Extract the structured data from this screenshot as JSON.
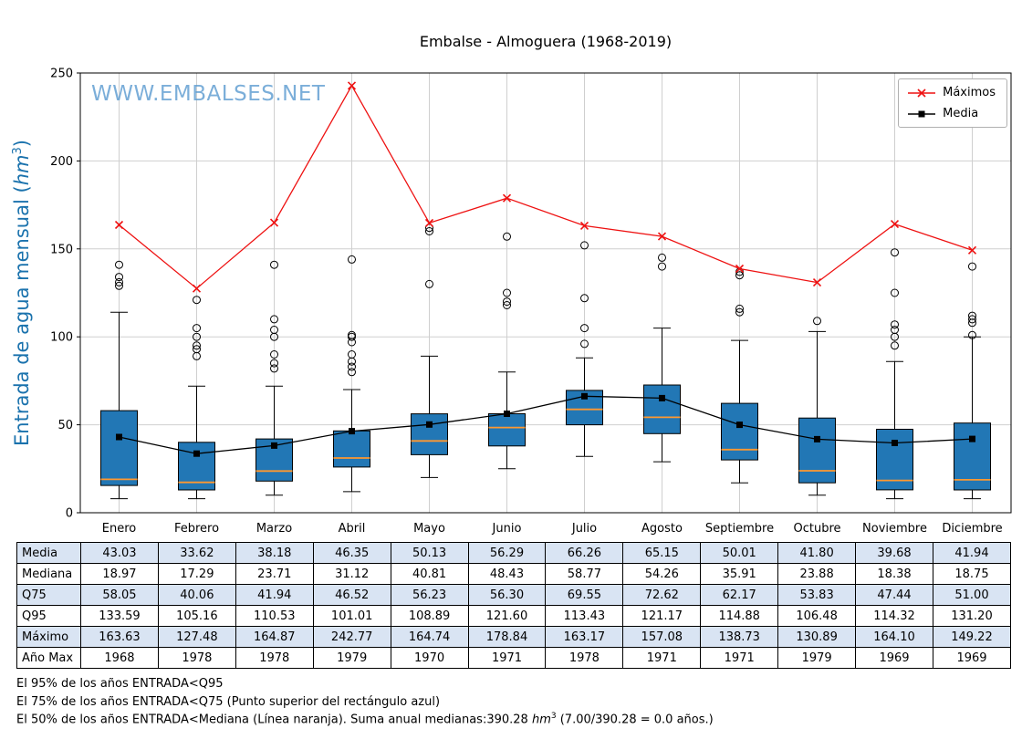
{
  "title": "Embalse - Almoguera (1968-2019)",
  "watermark": "WWW.EMBALSES.NET",
  "colors": {
    "box_fill": "#2277b5",
    "median_orange": "#ff9830",
    "max_red": "#ee1111",
    "axis_blue": "#1a72ad",
    "watermark_blue": "#5b9bd0",
    "table_stripe": "#d9e4f3"
  },
  "legend": {
    "maximos": "Máximos",
    "media": "Media"
  },
  "y_axis": {
    "label_pre": "Entrada de agua mensual (",
    "unit": "hm",
    "sup": "3",
    "label_post": ")",
    "ticks": [
      0,
      50,
      100,
      150,
      200,
      250
    ]
  },
  "chart_data": {
    "type": "boxplot",
    "title": "Embalse - Almoguera (1968-2019)",
    "ylabel": "Entrada de agua mensual (hm3)",
    "ylim": [
      0,
      250
    ],
    "grid": true,
    "legend_position": "top-right",
    "categories": [
      "Enero",
      "Febrero",
      "Marzo",
      "Abril",
      "Mayo",
      "Junio",
      "Julio",
      "Agosto",
      "Septiembre",
      "Octubre",
      "Noviembre",
      "Diciembre"
    ],
    "series": [
      {
        "name": "Máximos",
        "type": "line",
        "marker": "x",
        "values": [
          163.63,
          127.48,
          164.87,
          242.77,
          164.74,
          178.84,
          163.17,
          157.08,
          138.73,
          130.89,
          164.1,
          149.22
        ]
      },
      {
        "name": "Media",
        "type": "line",
        "marker": "square",
        "values": [
          43.03,
          33.62,
          38.18,
          46.35,
          50.13,
          56.29,
          66.26,
          65.15,
          50.01,
          41.8,
          39.68,
          41.94
        ]
      }
    ],
    "boxes": {
      "q25": [
        15.5,
        13,
        18,
        26,
        33,
        38,
        50,
        45,
        30,
        17,
        13,
        13
      ],
      "median": [
        18.97,
        17.29,
        23.71,
        31.12,
        40.81,
        48.43,
        58.77,
        54.26,
        35.91,
        23.88,
        18.38,
        18.75
      ],
      "q75": [
        58.05,
        40.06,
        41.94,
        46.52,
        56.23,
        56.3,
        69.55,
        72.62,
        62.17,
        53.83,
        47.44,
        51.0
      ],
      "whisker_low": [
        8,
        8,
        10,
        12,
        20,
        25,
        32,
        29,
        17,
        10,
        8,
        8
      ],
      "whisker_high": [
        114,
        72,
        72,
        70,
        89,
        80,
        88,
        105,
        98,
        103,
        86,
        100
      ],
      "outliers": [
        [
          129,
          131,
          134,
          141
        ],
        [
          89,
          93,
          95,
          100,
          105,
          121
        ],
        [
          82,
          85,
          90,
          100,
          104,
          110,
          141
        ],
        [
          80,
          83,
          86,
          90,
          97,
          100,
          101,
          144
        ],
        [
          130,
          160,
          162
        ],
        [
          118,
          120,
          125,
          157
        ],
        [
          96,
          105,
          122,
          152
        ],
        [
          140,
          145
        ],
        [
          114,
          116,
          135,
          137
        ],
        [
          109
        ],
        [
          95,
          100,
          104,
          107,
          125,
          148
        ],
        [
          101,
          108,
          110,
          112,
          140
        ]
      ]
    }
  },
  "table": {
    "rows": [
      {
        "label": "Media",
        "values": [
          "43.03",
          "33.62",
          "38.18",
          "46.35",
          "50.13",
          "56.29",
          "66.26",
          "65.15",
          "50.01",
          "41.80",
          "39.68",
          "41.94"
        ]
      },
      {
        "label": "Mediana",
        "values": [
          "18.97",
          "17.29",
          "23.71",
          "31.12",
          "40.81",
          "48.43",
          "58.77",
          "54.26",
          "35.91",
          "23.88",
          "18.38",
          "18.75"
        ]
      },
      {
        "label": "Q75",
        "values": [
          "58.05",
          "40.06",
          "41.94",
          "46.52",
          "56.23",
          "56.30",
          "69.55",
          "72.62",
          "62.17",
          "53.83",
          "47.44",
          "51.00"
        ]
      },
      {
        "label": "Q95",
        "values": [
          "133.59",
          "105.16",
          "110.53",
          "101.01",
          "108.89",
          "121.60",
          "113.43",
          "121.17",
          "114.88",
          "106.48",
          "114.32",
          "131.20"
        ]
      },
      {
        "label": "Máximo",
        "values": [
          "163.63",
          "127.48",
          "164.87",
          "242.77",
          "164.74",
          "178.84",
          "163.17",
          "157.08",
          "138.73",
          "130.89",
          "164.10",
          "149.22"
        ]
      },
      {
        "label": "Año Max",
        "values": [
          "1968",
          "1978",
          "1978",
          "1979",
          "1970",
          "1971",
          "1978",
          "1971",
          "1971",
          "1979",
          "1969",
          "1969"
        ]
      }
    ]
  },
  "footnotes": {
    "line1": "El 95% de los años ENTRADA<Q95",
    "line2": "El 75% de los años ENTRADA<Q75 (Punto superior del rectángulo azul)",
    "line3_pre": "El 50% de los años ENTRADA<Mediana (Línea naranja). Suma anual medianas:390.28 ",
    "line3_unit": "hm",
    "line3_sup": "3",
    "line3_post": " (7.00/390.28 = 0.0 años.)"
  }
}
